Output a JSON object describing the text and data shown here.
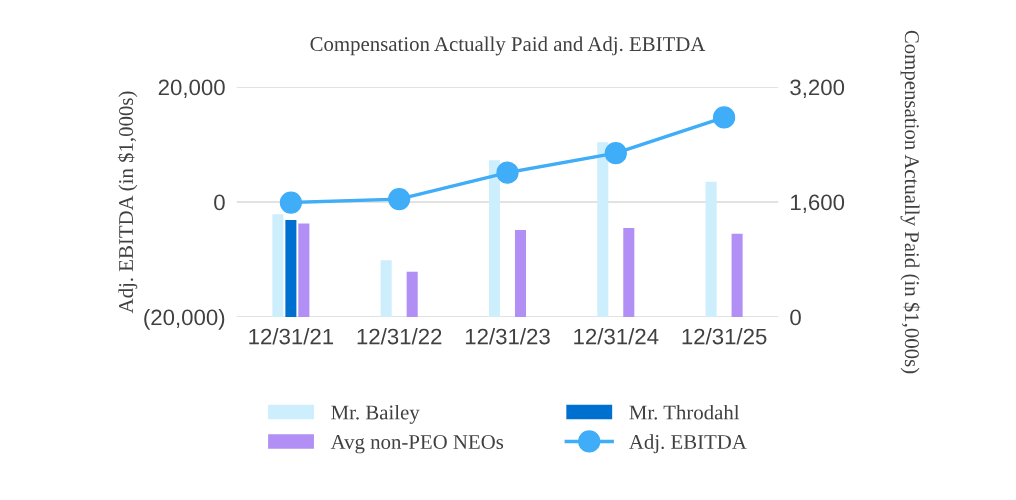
{
  "chart_data": {
    "type": "bar",
    "title": "Compensation Actually Paid and Adj. EBITDA",
    "categories": [
      "12/31/21",
      "12/31/22",
      "12/31/23",
      "12/31/24",
      "12/31/25"
    ],
    "series": [
      {
        "name": "Mr. Bailey",
        "axis": "y2",
        "color": "#cdeefd",
        "values": [
          1430,
          790,
          2180,
          2430,
          1880
        ]
      },
      {
        "name": "Mr. Throdahl",
        "axis": "y2",
        "color": "#0070d0",
        "values": [
          1350,
          null,
          null,
          null,
          null
        ]
      },
      {
        "name": "Avg non-PEO NEOs",
        "axis": "y2",
        "color": "#b18ff4",
        "values": [
          1300,
          630,
          1210,
          1240,
          1160
        ]
      },
      {
        "name": "Adj. EBITDA",
        "type": "line",
        "axis": "y",
        "color": "#3fadf7",
        "marker": "circle",
        "values": [
          -100,
          500,
          5100,
          8500,
          14700
        ]
      }
    ],
    "ylabel": "Adj. EBITDA (in $1,000s)",
    "y2label": "Compensation Actually Paid (in $1,000s)",
    "ylim": [
      -20000,
      20000
    ],
    "yticks": [
      {
        "value": -20000,
        "label": "(20,000)"
      },
      0,
      {
        "value": 20000,
        "label": "20,000"
      }
    ],
    "y2lim": [
      0,
      3200
    ],
    "y2ticks": [
      0,
      {
        "value": 1600,
        "label": "1,600"
      },
      {
        "value": 3200,
        "label": "3,200"
      }
    ],
    "grid": "y",
    "legend": "bottom"
  }
}
